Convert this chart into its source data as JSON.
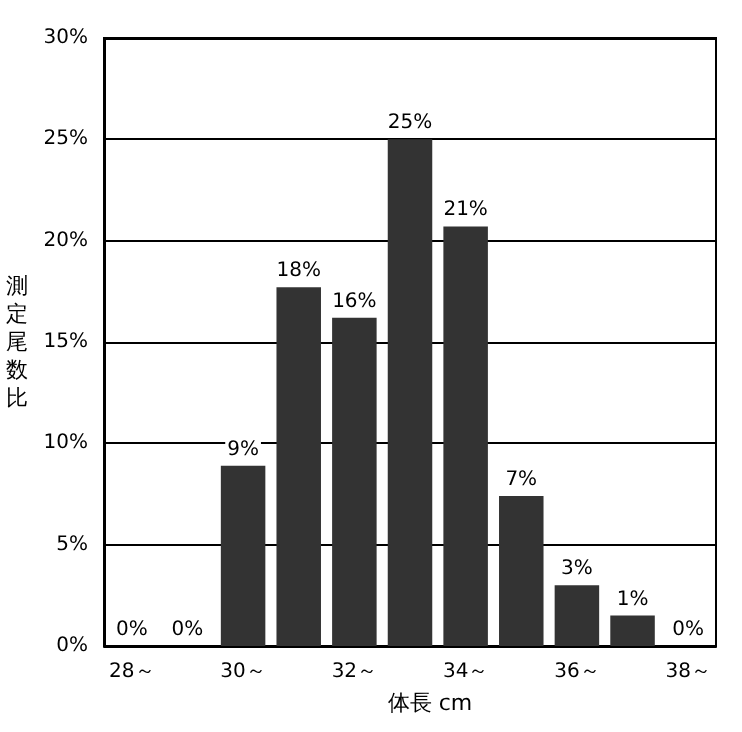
{
  "chart_data": {
    "type": "bar",
    "xlabel": "体長 cm",
    "ylabel": "測定尾数比",
    "categories": [
      "28～",
      null,
      "30～",
      null,
      "32～",
      null,
      "34～",
      null,
      "36～",
      null,
      "38～"
    ],
    "values": [
      0,
      0,
      8.9,
      17.7,
      16.2,
      25,
      20.7,
      7.4,
      3.0,
      1.5,
      0
    ],
    "value_labels": [
      "0%",
      "0%",
      "9%",
      "18%",
      "16%",
      "25%",
      "21%",
      "7%",
      "3%",
      "1%",
      "0%"
    ],
    "color": "#333333",
    "ylim": [
      0,
      30
    ],
    "yticks": [
      {
        "value": 0,
        "label": "0%"
      },
      {
        "value": 5,
        "label": "5%"
      },
      {
        "value": 10,
        "label": "10%"
      },
      {
        "value": 15,
        "label": "15%"
      },
      {
        "value": 20,
        "label": "20%"
      },
      {
        "value": 25,
        "label": "25%"
      },
      {
        "value": 30,
        "label": "30%"
      }
    ],
    "grid": "y"
  }
}
